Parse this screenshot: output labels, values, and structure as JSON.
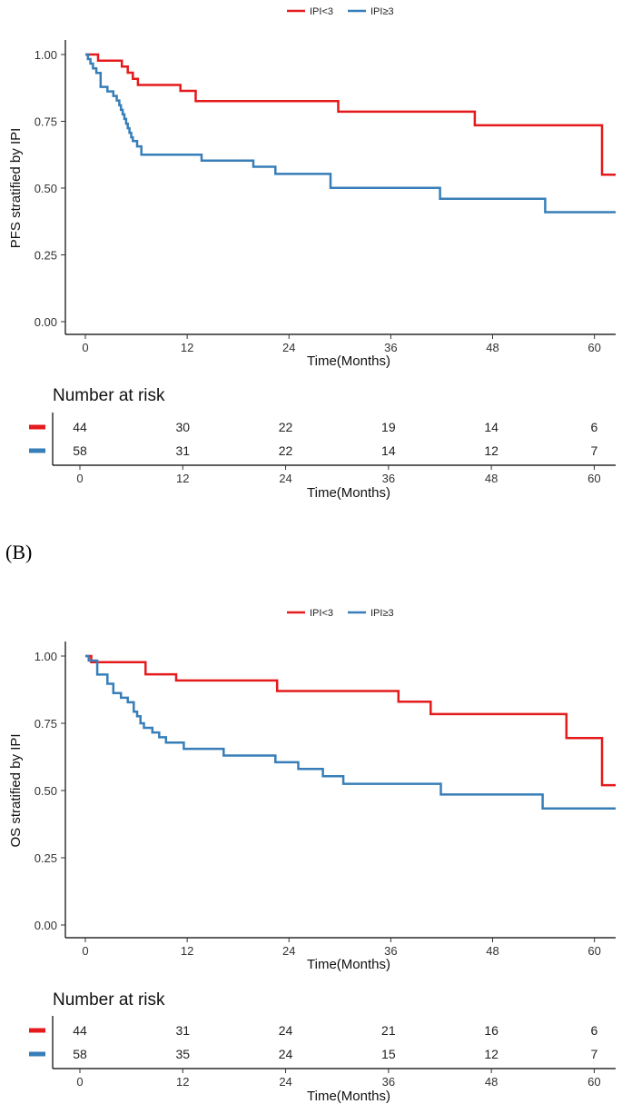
{
  "panel_b_label": "(B)",
  "chart_data": [
    {
      "id": "A",
      "type": "line",
      "step": true,
      "legend": [
        {
          "name": "IPI<3",
          "color": "#e41a1c"
        },
        {
          "name": "IPI≥3",
          "color": "#377eb8"
        }
      ],
      "ylabel": "PFS stratified by IPI",
      "xlabel": "Time(Months)",
      "xlim": [
        0,
        62.5
      ],
      "ylim": [
        0,
        1
      ],
      "xticks": [
        "0",
        "12",
        "24",
        "36",
        "48",
        "60"
      ],
      "xtick_values": [
        0,
        12,
        24,
        36,
        48,
        60
      ],
      "yticks": [
        "0.00",
        "0.25",
        "0.50",
        "0.75",
        "1.00"
      ],
      "ytick_values": [
        0,
        0.25,
        0.5,
        0.75,
        1
      ],
      "series": [
        {
          "name": "IPI<3",
          "color": "#e41a1c",
          "x": [
            0,
            0.8,
            1.5,
            4.3,
            5.0,
            5.6,
            6.2,
            7.6,
            11.2,
            13.0,
            29.8,
            45.9,
            60.9,
            62.5
          ],
          "y": [
            1.0,
            1.0,
            0.977,
            0.955,
            0.932,
            0.909,
            0.886,
            0.886,
            0.864,
            0.826,
            0.786,
            0.735,
            0.55,
            0.55
          ]
        },
        {
          "name": "IPI≥3",
          "color": "#377eb8",
          "x": [
            0,
            0.3,
            0.6,
            0.9,
            1.3,
            1.8,
            2.6,
            3.3,
            3.7,
            4.0,
            4.2,
            4.4,
            4.6,
            4.8,
            5.0,
            5.2,
            5.4,
            5.6,
            6.1,
            6.6,
            13.7,
            19.8,
            22.4,
            28.9,
            41.8,
            54.2,
            62.5
          ],
          "y": [
            1.0,
            0.983,
            0.966,
            0.948,
            0.931,
            0.879,
            0.862,
            0.845,
            0.828,
            0.81,
            0.793,
            0.776,
            0.759,
            0.741,
            0.724,
            0.707,
            0.69,
            0.676,
            0.656,
            0.625,
            0.603,
            0.58,
            0.553,
            0.501,
            0.46,
            0.41,
            0.41
          ]
        }
      ],
      "risk_table": {
        "title": "Number at risk",
        "xlabel": "Time(Months)",
        "rows": [
          {
            "name": "IPI<3",
            "color": "#e41a1c",
            "values": [
              "44",
              "30",
              "22",
              "19",
              "14",
              "6"
            ]
          },
          {
            "name": "IPI≥3",
            "color": "#377eb8",
            "values": [
              "58",
              "31",
              "22",
              "14",
              "12",
              "7"
            ]
          }
        ]
      }
    },
    {
      "id": "B",
      "type": "line",
      "step": true,
      "legend": [
        {
          "name": "IPI<3",
          "color": "#e41a1c"
        },
        {
          "name": "IPI≥3",
          "color": "#377eb8"
        }
      ],
      "ylabel": "OS stratified by IPI",
      "xlabel": "Time(Months)",
      "xlim": [
        0,
        62.5
      ],
      "ylim": [
        0,
        1
      ],
      "xticks": [
        "0",
        "12",
        "24",
        "36",
        "48",
        "60"
      ],
      "xtick_values": [
        0,
        12,
        24,
        36,
        48,
        60
      ],
      "yticks": [
        "0.00",
        "0.25",
        "0.50",
        "0.75",
        "1.00"
      ],
      "ytick_values": [
        0,
        0.25,
        0.5,
        0.75,
        1
      ],
      "series": [
        {
          "name": "IPI<3",
          "color": "#e41a1c",
          "x": [
            0,
            0.7,
            7.1,
            10.7,
            22.6,
            36.9,
            40.7,
            56.7,
            60.9,
            62.5
          ],
          "y": [
            1.0,
            0.977,
            0.932,
            0.909,
            0.87,
            0.83,
            0.784,
            0.695,
            0.52,
            0.52
          ]
        },
        {
          "name": "IPI≥3",
          "color": "#377eb8",
          "x": [
            0,
            0.4,
            1.4,
            2.6,
            3.3,
            4.2,
            5.0,
            5.7,
            6.1,
            6.5,
            6.9,
            7.9,
            8.7,
            9.5,
            11.6,
            16.3,
            22.4,
            25.1,
            28.0,
            30.4,
            41.9,
            53.9,
            62.5
          ],
          "y": [
            1.0,
            0.983,
            0.931,
            0.897,
            0.862,
            0.845,
            0.828,
            0.793,
            0.776,
            0.75,
            0.733,
            0.716,
            0.698,
            0.678,
            0.655,
            0.63,
            0.605,
            0.58,
            0.553,
            0.525,
            0.485,
            0.433,
            0.433
          ]
        }
      ],
      "risk_table": {
        "title": "Number at risk",
        "xlabel": "Time(Months)",
        "rows": [
          {
            "name": "IPI<3",
            "color": "#e41a1c",
            "values": [
              "44",
              "31",
              "24",
              "21",
              "16",
              "6"
            ]
          },
          {
            "name": "IPI≥3",
            "color": "#377eb8",
            "values": [
              "58",
              "35",
              "24",
              "15",
              "12",
              "7"
            ]
          }
        ]
      }
    }
  ]
}
